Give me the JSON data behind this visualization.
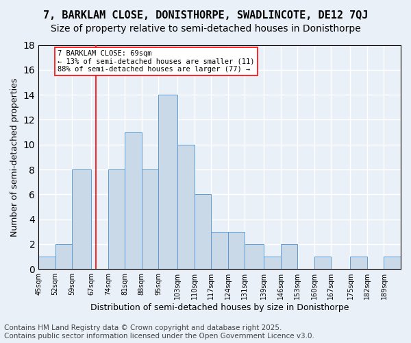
{
  "title1": "7, BARKLAM CLOSE, DONISTHORPE, SWADLINCOTE, DE12 7QJ",
  "title2": "Size of property relative to semi-detached houses in Donisthorpe",
  "xlabel": "Distribution of semi-detached houses by size in Donisthorpe",
  "ylabel": "Number of semi-detached properties",
  "footer1": "Contains HM Land Registry data © Crown copyright and database right 2025.",
  "footer2": "Contains public sector information licensed under the Open Government Licence v3.0.",
  "bin_labels": [
    "45sqm",
    "52sqm",
    "59sqm",
    "67sqm",
    "74sqm",
    "81sqm",
    "88sqm",
    "95sqm",
    "103sqm",
    "110sqm",
    "117sqm",
    "124sqm",
    "131sqm",
    "139sqm",
    "146sqm",
    "153sqm",
    "160sqm",
    "167sqm",
    "175sqm",
    "182sqm",
    "189sqm"
  ],
  "bin_edges": [
    45,
    52,
    59,
    67,
    74,
    81,
    88,
    95,
    103,
    110,
    117,
    124,
    131,
    139,
    146,
    153,
    160,
    167,
    175,
    182,
    189
  ],
  "counts": [
    1,
    2,
    8,
    0,
    8,
    11,
    8,
    14,
    10,
    6,
    3,
    3,
    2,
    1,
    2,
    0,
    1,
    0,
    1,
    0,
    1
  ],
  "bar_color": "#c9d9e8",
  "bar_edge_color": "#5b9bd5",
  "property_size": 69,
  "vline_x": 69,
  "vline_color": "red",
  "annotation_text": "7 BARKLAM CLOSE: 69sqm\n← 13% of semi-detached houses are smaller (11)\n88% of semi-detached houses are larger (77) →",
  "annotation_box_color": "white",
  "annotation_box_edgecolor": "red",
  "ylim": [
    0,
    18
  ],
  "background_color": "#eaf0f8",
  "grid_color": "white",
  "title1_fontsize": 11,
  "title2_fontsize": 10,
  "xlabel_fontsize": 9,
  "ylabel_fontsize": 9,
  "footer_fontsize": 7.5
}
